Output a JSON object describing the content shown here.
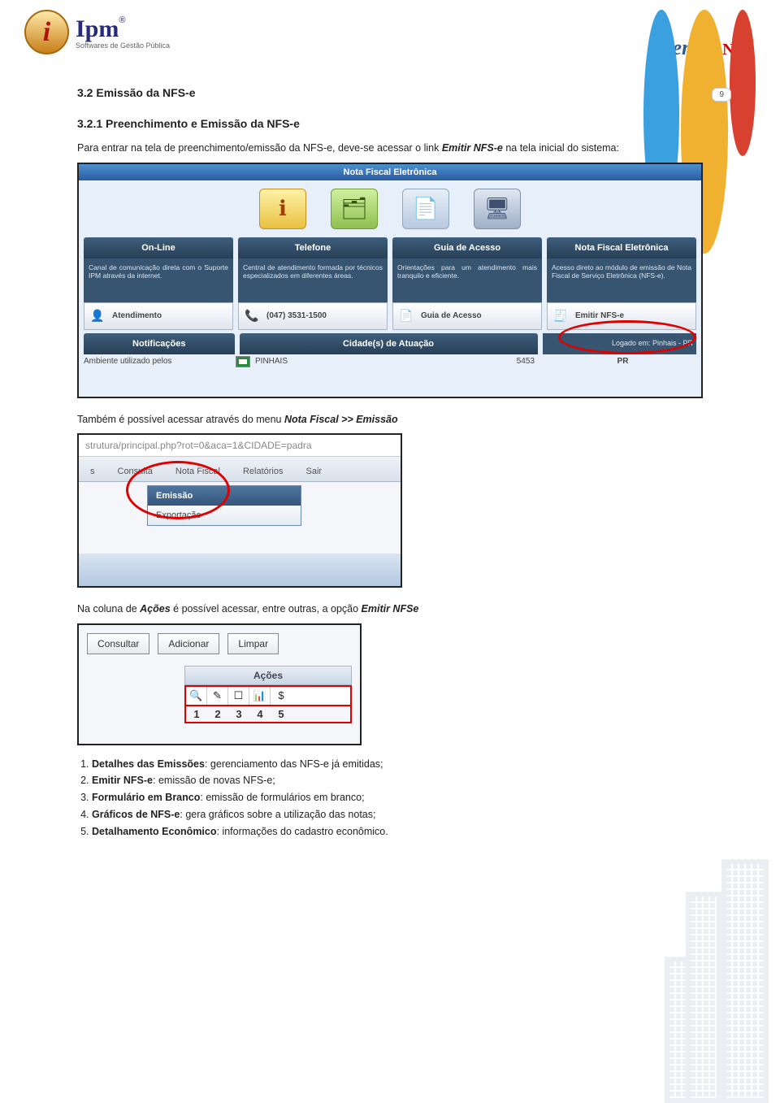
{
  "page_number": "9",
  "logo_left": {
    "name": "Ipm",
    "tagline": "Softwares de Gestão Pública",
    "reg": "®"
  },
  "logo_right": {
    "name": "Atende",
    "suffix": ".Net"
  },
  "h1": "3.2 Emissão da NFS-e",
  "h2": "3.2.1 Preenchimento e Emissão da NFS-e",
  "p1_prefix": "Para entrar na tela de preenchimento/emissão da NFS-e, deve-se acessar o link ",
  "p1_link": "Emitir NFS-e",
  "p1_suffix": " na tela inicial do sistema:",
  "screenshot1": {
    "title": "Nota Fiscal Eletrônica",
    "cols": [
      {
        "hdr": "On-Line",
        "body": "Canal de comunicação direta com o Suporte IPM através da internet.",
        "btn": "Atendimento",
        "icon": "👤"
      },
      {
        "hdr": "Telefone",
        "body": "Central de atendimento formada por técnicos especializados em diferentes áreas.",
        "btn": "(047) 3531-1500",
        "icon": "📞"
      },
      {
        "hdr": "Guia de Acesso",
        "body": "Orientações para um atendimento mais tranquilo e eficiente.",
        "btn": "Guia de Acesso",
        "icon": "📄"
      },
      {
        "hdr": "Nota Fiscal Eletrônica",
        "body": "Acesso direto ao módulo de emissão de Nota Fiscal de Serviço Eletrônica (NFS-e).",
        "btn": "Emitir NFS-e",
        "icon": "🧾"
      }
    ],
    "row2": {
      "a": "Notificações",
      "b": "Cidade(s) de Atuação",
      "right": "Logado em: Pinhais - PR"
    },
    "row3": {
      "a": "Ambiente    utilizado    pelos",
      "city": "PINHAIS",
      "num": "5453",
      "uf": "PR"
    }
  },
  "p2_prefix": "Também é possível acessar através do menu ",
  "p2_link": "Nota Fiscal >> Emissão",
  "screenshot2": {
    "url": "strutura/principal.php?rot=0&aca=1&CIDADE=padra",
    "tabs": [
      "s",
      "Consulta",
      "Nota Fiscal",
      "Relatórios",
      "Sair"
    ],
    "menu": [
      "Emissão",
      "Exportação"
    ]
  },
  "p3_a": "Na coluna de ",
  "p3_b": "Ações",
  "p3_c": " é possível acessar, entre outras, a opção ",
  "p3_d": "Emitir NFSe",
  "screenshot3": {
    "buttons": [
      "Consultar",
      "Adicionar",
      "Limpar"
    ],
    "header": "Ações",
    "icons": [
      "🔍",
      "✎",
      "☐",
      "📊",
      "$"
    ],
    "nums": [
      "1",
      "2",
      "3",
      "4",
      "5"
    ]
  },
  "action_list": [
    {
      "t": "Detalhes das Emissões",
      "d": ": gerenciamento das NFS-e já emitidas;"
    },
    {
      "t": "Emitir NFS-e",
      "d": ": emissão de novas NFS-e;"
    },
    {
      "t": "Formulário em Branco",
      "d": ": emissão de formulários em branco;"
    },
    {
      "t": "Gráficos de NFS-e",
      "d": ": gera gráficos sobre a utilização das notas;"
    },
    {
      "t": "Detalhamento Econômico",
      "d": ": informações do cadastro econômico."
    }
  ]
}
